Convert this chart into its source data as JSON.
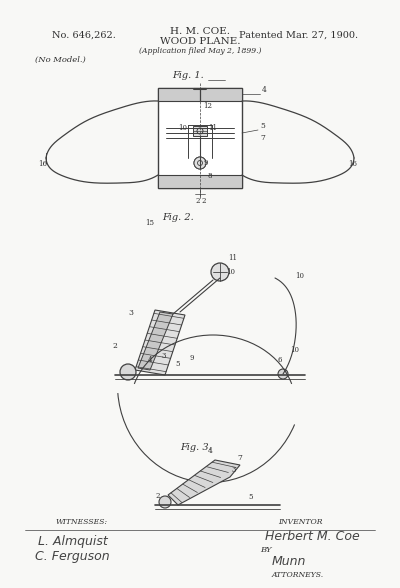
{
  "bg_color": "#f8f8f6",
  "line_color": "#404040",
  "text_color": "#303030",
  "patent_number": "No. 646,262.",
  "inventor_name": "H. M. COE.",
  "invention_title": "WOOD PLANE.",
  "application_text": "(Application filed May 2, 1899.)",
  "patent_date": "Patented Mar. 27, 1900.",
  "no_model": "(No Model.)",
  "witnesses_label": "WITNESSES:",
  "witness1": "L. Almquist",
  "witness2": "C. Ferguson",
  "inventor_label": "INVENTOR",
  "inventor_sig": "Herbert M. Coe",
  "by_label": "BY",
  "attorney_sig": "Munn",
  "attorneys_label": "ATTORNEYS.",
  "fig1_label": "Fig. 1.",
  "fig2_label": "Fig. 2.",
  "fig3_label": "Fig. 3."
}
